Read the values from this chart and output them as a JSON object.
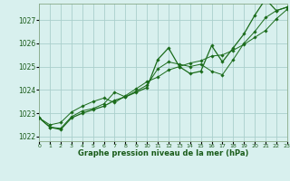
{
  "xlabel": "Graphe pression niveau de la mer (hPa)",
  "background_color": "#d8f0ee",
  "grid_color": "#aacfcc",
  "line_color": "#1a6b1a",
  "marker_color": "#1a6b1a",
  "text_color": "#1a5c1a",
  "xlabel_color": "#1a5c1a",
  "xlim": [
    0,
    23
  ],
  "ylim": [
    1021.8,
    1027.7
  ],
  "yticks": [
    1022,
    1023,
    1024,
    1025,
    1026,
    1027
  ],
  "xticks": [
    0,
    1,
    2,
    3,
    4,
    5,
    6,
    7,
    8,
    9,
    10,
    11,
    12,
    13,
    14,
    15,
    16,
    17,
    18,
    19,
    20,
    21,
    22,
    23
  ],
  "series1": [
    [
      0,
      1022.8
    ],
    [
      1,
      1022.4
    ],
    [
      2,
      1022.3
    ],
    [
      3,
      1022.8
    ],
    [
      4,
      1023.0
    ],
    [
      5,
      1023.15
    ],
    [
      6,
      1023.3
    ],
    [
      7,
      1023.55
    ],
    [
      8,
      1023.7
    ],
    [
      9,
      1023.9
    ],
    [
      10,
      1024.1
    ],
    [
      11,
      1025.3
    ],
    [
      12,
      1025.8
    ],
    [
      13,
      1025.0
    ],
    [
      14,
      1024.7
    ],
    [
      15,
      1024.8
    ],
    [
      16,
      1025.9
    ],
    [
      17,
      1025.2
    ],
    [
      18,
      1025.8
    ],
    [
      19,
      1026.4
    ],
    [
      20,
      1027.2
    ],
    [
      21,
      1027.9
    ],
    [
      22,
      1027.4
    ],
    [
      23,
      1027.55
    ]
  ],
  "series2": [
    [
      0,
      1022.8
    ],
    [
      1,
      1022.4
    ],
    [
      2,
      1022.35
    ],
    [
      3,
      1022.85
    ],
    [
      4,
      1023.1
    ],
    [
      5,
      1023.2
    ],
    [
      6,
      1023.4
    ],
    [
      7,
      1023.9
    ],
    [
      8,
      1023.7
    ],
    [
      9,
      1023.95
    ],
    [
      10,
      1024.2
    ],
    [
      11,
      1024.9
    ],
    [
      12,
      1025.2
    ],
    [
      13,
      1025.1
    ],
    [
      14,
      1025.0
    ],
    [
      15,
      1025.1
    ],
    [
      16,
      1024.8
    ],
    [
      17,
      1024.65
    ],
    [
      18,
      1025.3
    ],
    [
      19,
      1026.0
    ],
    [
      20,
      1026.5
    ],
    [
      21,
      1027.1
    ],
    [
      22,
      1027.4
    ],
    [
      23,
      1027.55
    ]
  ],
  "series3": [
    [
      0,
      1022.8
    ],
    [
      1,
      1022.5
    ],
    [
      2,
      1022.6
    ],
    [
      3,
      1023.05
    ],
    [
      4,
      1023.3
    ],
    [
      5,
      1023.5
    ],
    [
      6,
      1023.65
    ],
    [
      7,
      1023.45
    ],
    [
      8,
      1023.75
    ],
    [
      9,
      1024.05
    ],
    [
      10,
      1024.35
    ],
    [
      11,
      1024.55
    ],
    [
      12,
      1024.85
    ],
    [
      13,
      1025.0
    ],
    [
      14,
      1025.15
    ],
    [
      15,
      1025.25
    ],
    [
      16,
      1025.45
    ],
    [
      17,
      1025.5
    ],
    [
      18,
      1025.7
    ],
    [
      19,
      1025.95
    ],
    [
      20,
      1026.25
    ],
    [
      21,
      1026.55
    ],
    [
      22,
      1027.05
    ],
    [
      23,
      1027.45
    ]
  ]
}
